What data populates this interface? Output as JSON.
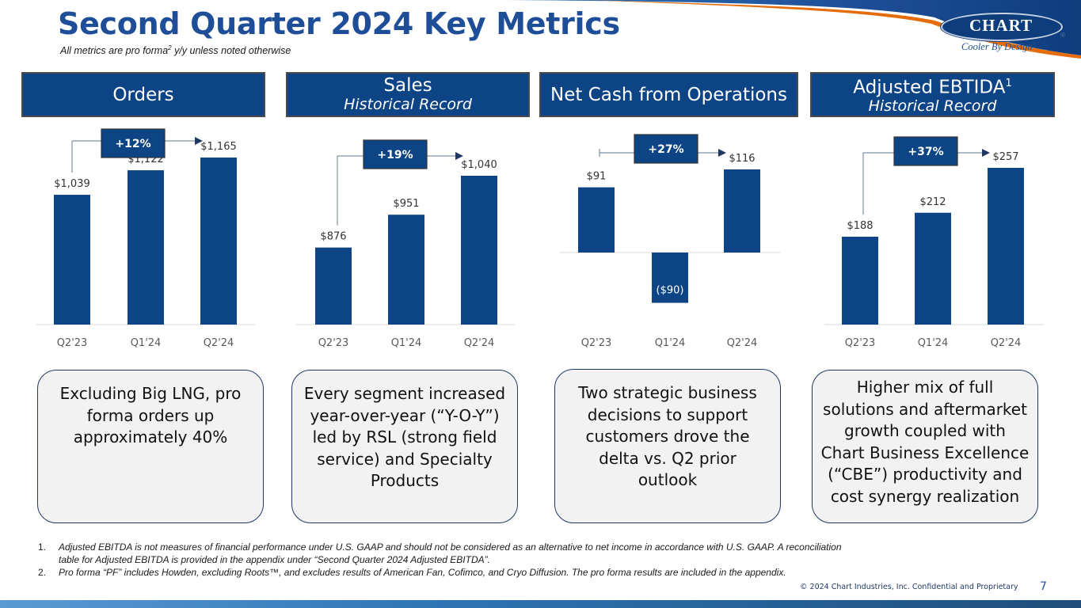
{
  "title": "Second Quarter 2024 Key Metrics",
  "subtitle": {
    "before": "All metrics are pro forma",
    "sup": "2",
    "after": " y/y unless noted otherwise"
  },
  "logo": {
    "name": "CHART",
    "reg": "®",
    "tagline": "Cooler By Design",
    "tagline_reg": "®"
  },
  "colors": {
    "bar": "#0d4485",
    "header": "#0d4485",
    "title": "#1f4e99",
    "callout_bg": "#f2f2f2"
  },
  "headers": [
    {
      "line1": "Orders",
      "sup": "",
      "line2": ""
    },
    {
      "line1": "Sales",
      "sup": "",
      "line2": "Historical Record"
    },
    {
      "line1": "Net Cash from Operations",
      "sup": "",
      "line2": ""
    },
    {
      "line1": "Adjusted EBTIDA",
      "sup": "1",
      "line2": "Historical Record"
    }
  ],
  "chart_data": [
    {
      "type": "bar",
      "title": "Orders",
      "categories": [
        "Q2'23",
        "Q1'24",
        "Q2'24"
      ],
      "values": [
        1039,
        1122,
        1165
      ],
      "labels": [
        "$1,039",
        "$1,122",
        "$1,165"
      ],
      "ylim": [
        600,
        1200
      ],
      "growth": "+12%"
    },
    {
      "type": "bar",
      "title": "Sales",
      "categories": [
        "Q2'23",
        "Q1'24",
        "Q2'24"
      ],
      "values": [
        876,
        951,
        1040
      ],
      "labels": [
        "$876",
        "$951",
        "$1,040"
      ],
      "ylim": [
        700,
        1100
      ],
      "growth": "+19%"
    },
    {
      "type": "bar",
      "title": "Net Cash from Operations",
      "categories": [
        "Q2'23",
        "Q1'24",
        "Q2'24"
      ],
      "values": [
        91,
        -90,
        116
      ],
      "labels": [
        "$91",
        "($90)",
        "$116"
      ],
      "ylim": [
        -100,
        130
      ],
      "growth": "+27%"
    },
    {
      "type": "bar",
      "title": "Adjusted EBTIDA",
      "categories": [
        "Q2'23",
        "Q1'24",
        "Q2'24"
      ],
      "values": [
        188,
        212,
        257
      ],
      "labels": [
        "$188",
        "$212",
        "$257"
      ],
      "ylim": [
        100,
        270
      ],
      "growth": "+37%"
    }
  ],
  "callouts": [
    {
      "lines": [
        "Excluding Big LNG, pro",
        "forma orders up",
        "approximately 40%"
      ]
    },
    {
      "lines": [
        "Every segment increased",
        "year-over-year (“Y-O-Y”)",
        "led by RSL (strong field",
        "service) and Specialty",
        "Products"
      ]
    },
    {
      "lines": [
        "Two  strategic business",
        "decisions to support",
        "customers drove the",
        "delta vs. Q2 prior",
        "outlook"
      ]
    },
    {
      "lines": [
        "Higher mix of full",
        "solutions and aftermarket",
        "growth coupled with",
        "Chart Business Excellence",
        "(“CBE”) productivity and",
        "cost synergy realization"
      ]
    }
  ],
  "footnotes": [
    {
      "num": "1.",
      "lines": [
        "Adjusted EBITDA is not measures of financial performance under U.S. GAAP and should not be considered as an alternative to net income in accordance with U.S. GAAP. A reconciliation",
        "table for Adjusted EBITDA is provided in the appendix under “Second Quarter 2024 Adjusted EBITDA”."
      ]
    },
    {
      "num": "2.",
      "lines": [
        "Pro forma “PF” includes Howden, excluding Roots™, and excludes results of American Fan, Cofimco, and Cryo Diffusion. The pro forma results are included in the appendix."
      ]
    }
  ],
  "copyright": "© 2024 Chart Industries, Inc. Confidential and Proprietary",
  "page_number": "7"
}
